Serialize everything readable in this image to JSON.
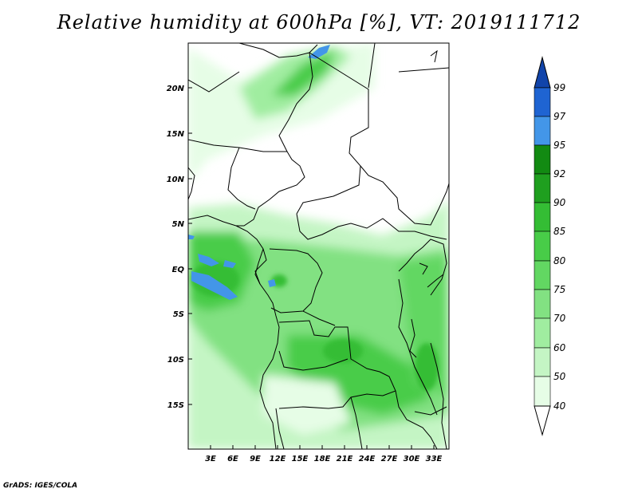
{
  "title": "Relative humidity at 600hPa [%], VT: 2019111712",
  "credit": "GrADS: IGES/COLA",
  "map": {
    "lat_labels": [
      "20N",
      "15N",
      "10N",
      "5N",
      "EQ",
      "5S",
      "10S",
      "15S"
    ],
    "lon_labels": [
      "3E",
      "6E",
      "9E",
      "12E",
      "15E",
      "18E",
      "21E",
      "24E",
      "27E",
      "30E",
      "33E"
    ]
  },
  "colorbar": {
    "levels": [
      "40",
      "50",
      "60",
      "70",
      "75",
      "80",
      "85",
      "90",
      "92",
      "95",
      "97",
      "99"
    ],
    "colors": [
      "#ffffff",
      "#e6fde6",
      "#c4f5c4",
      "#a0eda0",
      "#82e182",
      "#62d762",
      "#48cc48",
      "#34bd34",
      "#1f9f1f",
      "#128a12",
      "#4396e8",
      "#1f64d2",
      "#1144aa"
    ]
  }
}
